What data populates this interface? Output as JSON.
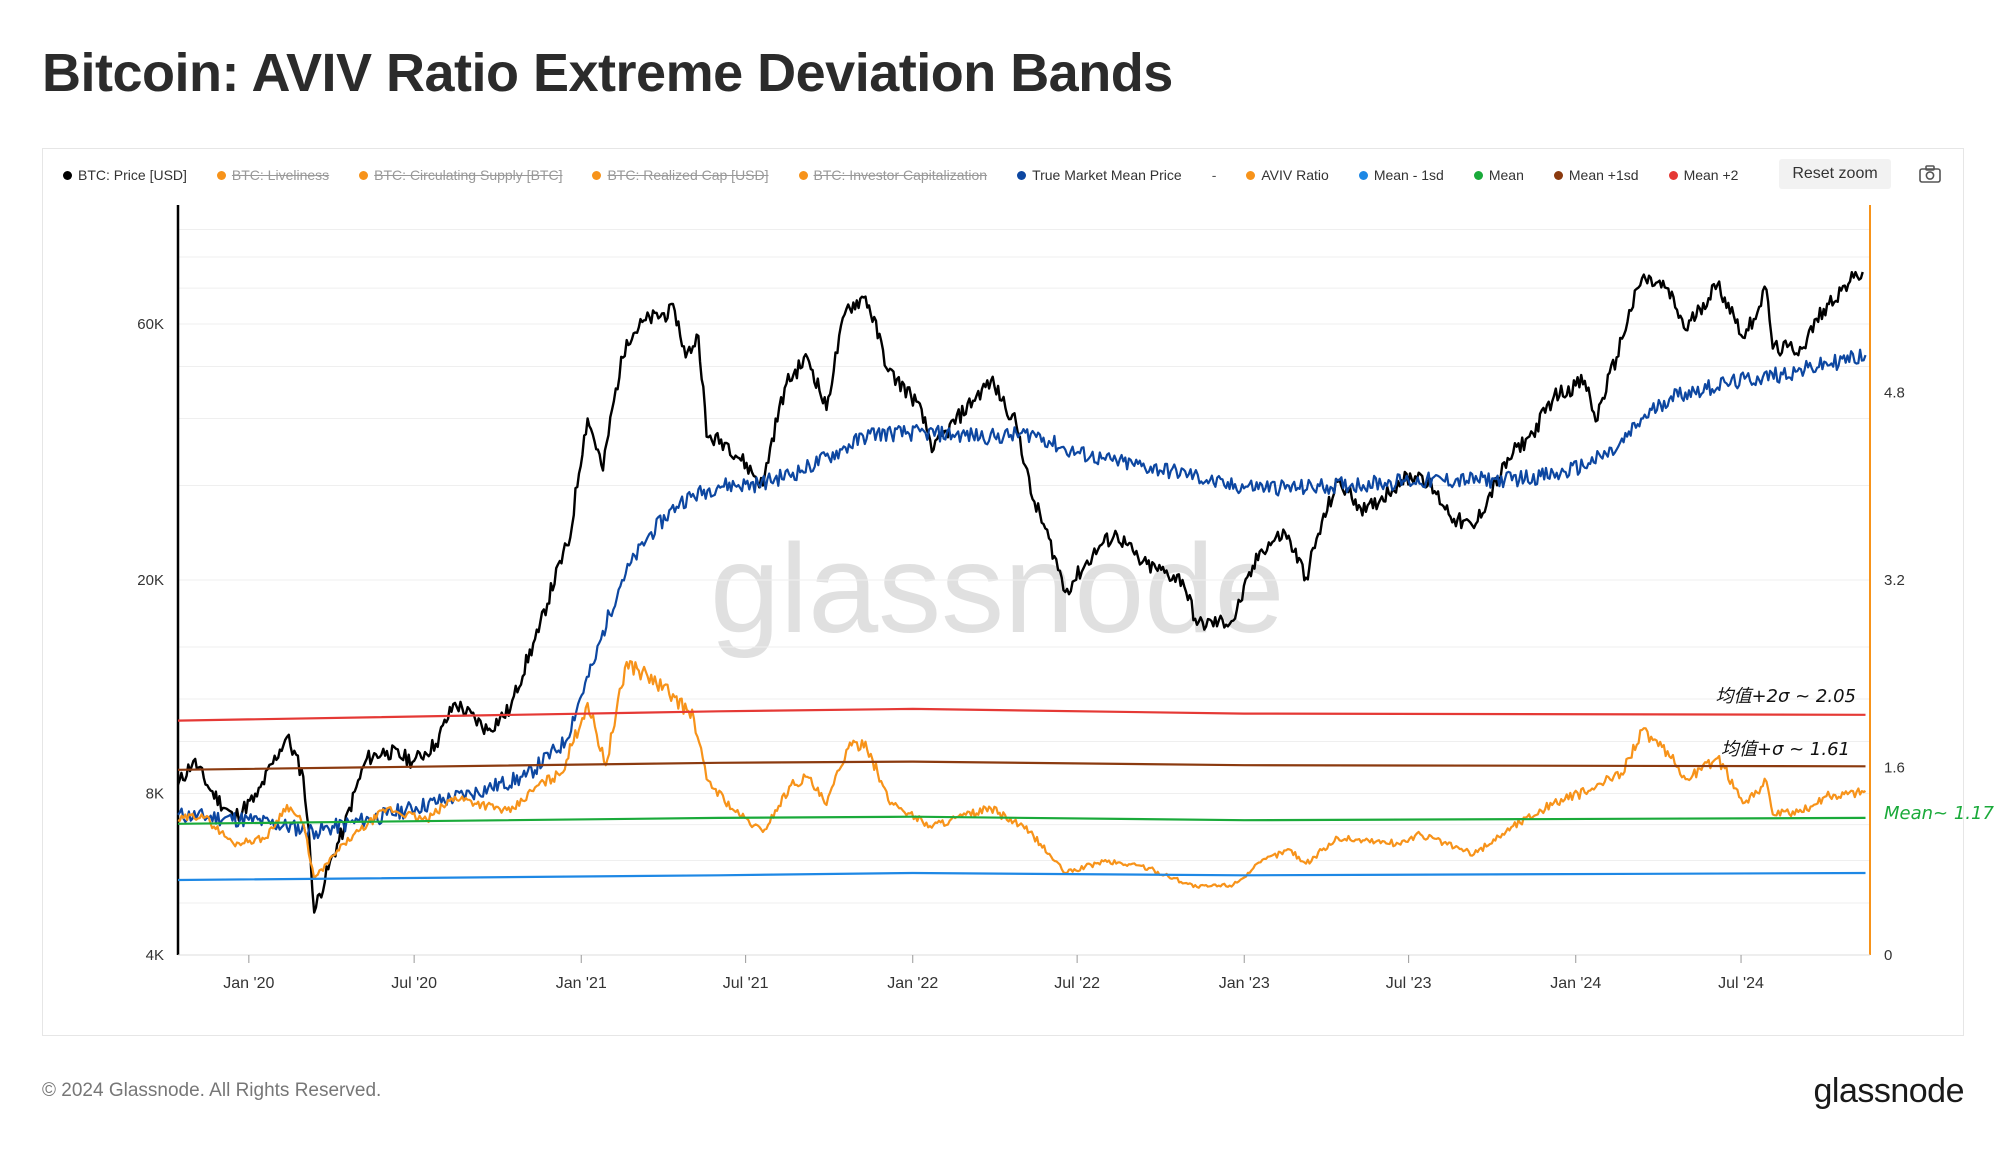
{
  "title": "Bitcoin: AVIV Ratio Extreme Deviation Bands",
  "toolbar": {
    "reset_zoom_label": "Reset zoom",
    "camera_icon": "camera-icon"
  },
  "legend": [
    {
      "label": "BTC: Price [USD]",
      "color": "#000000",
      "hidden": false
    },
    {
      "label": "BTC: Liveliness",
      "color": "#f7931a",
      "hidden": true
    },
    {
      "label": "BTC: Circulating Supply [BTC]",
      "color": "#f7931a",
      "hidden": true
    },
    {
      "label": "BTC: Realized Cap [USD]",
      "color": "#f7931a",
      "hidden": true
    },
    {
      "label": "BTC: Investor Capitalization",
      "color": "#f7931a",
      "hidden": true
    },
    {
      "label": "True Market Mean Price",
      "color": "#0d47a1",
      "hidden": false
    },
    {
      "label": "-",
      "color": "",
      "hidden": false,
      "separator": true
    },
    {
      "label": "AVIV Ratio",
      "color": "#f7931a",
      "hidden": false
    },
    {
      "label": "Mean - 1sd",
      "color": "#1e88e5",
      "hidden": false
    },
    {
      "label": "Mean",
      "color": "#1aaa3a",
      "hidden": false
    },
    {
      "label": "Mean +1sd",
      "color": "#8b3a0f",
      "hidden": false
    },
    {
      "label": "Mean +2",
      "color": "#e53935",
      "hidden": false
    }
  ],
  "annotations": {
    "plus2": "均值+2σ ~ 2.05",
    "plus1": "均值+σ ~ 1.61",
    "mean": "Mean~ 1.17"
  },
  "watermark": "glassnode",
  "footer": {
    "copyright": "© 2024 Glassnode. All Rights Reserved.",
    "logo": "glassnode"
  },
  "chart_data": {
    "type": "line",
    "title": "Bitcoin: AVIV Ratio Extreme Deviation Bands",
    "x_ticks": [
      "Jan '20",
      "Jul '20",
      "Jan '21",
      "Jul '21",
      "Jan '22",
      "Jul '22",
      "Jan '23",
      "Jul '23",
      "Jan '24",
      "Jul '24"
    ],
    "x_range": [
      "2019-10-15",
      "2024-11-20"
    ],
    "y_left": {
      "scale": "log",
      "ticks": [
        "4K",
        "8K",
        "20K",
        "60K"
      ],
      "range": [
        4000,
        100000
      ]
    },
    "y_right": {
      "scale": "linear",
      "ticks": [
        "0",
        "1.6",
        "3.2",
        "4.8"
      ],
      "range": [
        0,
        6.4
      ]
    },
    "grid": true,
    "legend_position": "top",
    "series": [
      {
        "name": "BTC: Price [USD]",
        "axis": "left",
        "color": "#000000",
        "points": [
          [
            "2019-10-15",
            8300
          ],
          [
            "2019-11-01",
            9200
          ],
          [
            "2019-11-20",
            8100
          ],
          [
            "2019-12-15",
            7200
          ],
          [
            "2020-01-10",
            7900
          ],
          [
            "2020-02-12",
            10200
          ],
          [
            "2020-03-01",
            8600
          ],
          [
            "2020-03-13",
            4800
          ],
          [
            "2020-04-15",
            6900
          ],
          [
            "2020-05-10",
            9300
          ],
          [
            "2020-06-01",
            9600
          ],
          [
            "2020-07-01",
            9200
          ],
          [
            "2020-07-25",
            9900
          ],
          [
            "2020-08-15",
            11800
          ],
          [
            "2020-09-20",
            10500
          ],
          [
            "2020-10-15",
            11500
          ],
          [
            "2020-11-15",
            16000
          ],
          [
            "2020-12-20",
            24000
          ],
          [
            "2021-01-08",
            40000
          ],
          [
            "2021-01-25",
            32000
          ],
          [
            "2021-02-20",
            56000
          ],
          [
            "2021-03-13",
            61000
          ],
          [
            "2021-04-14",
            63500
          ],
          [
            "2021-04-26",
            52000
          ],
          [
            "2021-05-10",
            57000
          ],
          [
            "2021-05-19",
            37000
          ],
          [
            "2021-06-10",
            36000
          ],
          [
            "2021-07-20",
            30000
          ],
          [
            "2021-08-15",
            46500
          ],
          [
            "2021-09-07",
            52000
          ],
          [
            "2021-09-28",
            41500
          ],
          [
            "2021-10-20",
            64000
          ],
          [
            "2021-11-10",
            67500
          ],
          [
            "2021-12-05",
            49000
          ],
          [
            "2022-01-05",
            43000
          ],
          [
            "2022-01-24",
            35000
          ],
          [
            "2022-03-28",
            47000
          ],
          [
            "2022-04-25",
            39000
          ],
          [
            "2022-05-11",
            29000
          ],
          [
            "2022-06-18",
            19000
          ],
          [
            "2022-07-30",
            23500
          ],
          [
            "2022-08-14",
            24300
          ],
          [
            "2022-09-10",
            21500
          ],
          [
            "2022-10-25",
            20000
          ],
          [
            "2022-11-10",
            16500
          ],
          [
            "2022-12-20",
            16800
          ],
          [
            "2023-01-20",
            22800
          ],
          [
            "2023-02-15",
            24500
          ],
          [
            "2023-03-10",
            20200
          ],
          [
            "2023-04-14",
            30500
          ],
          [
            "2023-05-15",
            26800
          ],
          [
            "2023-06-23",
            30700
          ],
          [
            "2023-07-14",
            31500
          ],
          [
            "2023-08-20",
            26000
          ],
          [
            "2023-09-11",
            25000
          ],
          [
            "2023-10-24",
            34500
          ],
          [
            "2023-11-15",
            37500
          ],
          [
            "2023-12-08",
            44000
          ],
          [
            "2024-01-11",
            47000
          ],
          [
            "2024-01-23",
            39500
          ],
          [
            "2024-02-15",
            52000
          ],
          [
            "2024-03-14",
            73000
          ],
          [
            "2024-04-10",
            70000
          ],
          [
            "2024-05-01",
            58500
          ],
          [
            "2024-06-05",
            71000
          ],
          [
            "2024-07-05",
            56500
          ],
          [
            "2024-07-29",
            69500
          ],
          [
            "2024-08-05",
            54000
          ],
          [
            "2024-09-06",
            54000
          ],
          [
            "2024-09-30",
            64000
          ],
          [
            "2024-10-29",
            72000
          ],
          [
            "2024-11-12",
            75000
          ]
        ]
      },
      {
        "name": "True Market Mean Price",
        "axis": "left",
        "color": "#0d47a1",
        "points": [
          [
            "2019-10-15",
            7300
          ],
          [
            "2020-01-01",
            7150
          ],
          [
            "2020-03-15",
            6800
          ],
          [
            "2020-06-01",
            7300
          ],
          [
            "2020-09-01",
            8000
          ],
          [
            "2020-11-01",
            8600
          ],
          [
            "2020-12-15",
            10000
          ],
          [
            "2021-01-15",
            14000
          ],
          [
            "2021-02-15",
            20000
          ],
          [
            "2021-03-15",
            24000
          ],
          [
            "2021-04-20",
            28000
          ],
          [
            "2021-06-01",
            30000
          ],
          [
            "2021-07-15",
            30200
          ],
          [
            "2021-09-01",
            32000
          ],
          [
            "2021-10-15",
            35000
          ],
          [
            "2021-11-15",
            37500
          ],
          [
            "2022-01-15",
            37600
          ],
          [
            "2022-04-01",
            37000
          ],
          [
            "2022-05-15",
            37500
          ],
          [
            "2022-06-18",
            35000
          ],
          [
            "2022-08-01",
            33500
          ],
          [
            "2022-11-01",
            31500
          ],
          [
            "2022-12-10",
            30000
          ],
          [
            "2023-03-01",
            29700
          ],
          [
            "2023-07-01",
            30600
          ],
          [
            "2023-10-15",
            30800
          ],
          [
            "2023-12-15",
            31500
          ],
          [
            "2024-01-15",
            33000
          ],
          [
            "2024-02-15",
            35000
          ],
          [
            "2024-03-15",
            40000
          ],
          [
            "2024-04-15",
            44000
          ],
          [
            "2024-06-15",
            46500
          ],
          [
            "2024-09-01",
            49000
          ],
          [
            "2024-11-15",
            52500
          ]
        ]
      },
      {
        "name": "AVIV Ratio",
        "axis": "right",
        "color": "#f7931a",
        "points": [
          [
            "2019-10-15",
            1.15
          ],
          [
            "2019-11-10",
            1.2
          ],
          [
            "2019-12-15",
            0.95
          ],
          [
            "2020-01-20",
            1.0
          ],
          [
            "2020-02-12",
            1.28
          ],
          [
            "2020-03-01",
            1.12
          ],
          [
            "2020-03-13",
            0.65
          ],
          [
            "2020-04-15",
            0.95
          ],
          [
            "2020-06-01",
            1.25
          ],
          [
            "2020-07-15",
            1.15
          ],
          [
            "2020-08-15",
            1.35
          ],
          [
            "2020-10-15",
            1.22
          ],
          [
            "2020-11-15",
            1.45
          ],
          [
            "2020-12-10",
            1.55
          ],
          [
            "2021-01-08",
            2.15
          ],
          [
            "2021-01-28",
            1.62
          ],
          [
            "2021-02-20",
            2.5
          ],
          [
            "2021-03-15",
            2.38
          ],
          [
            "2021-04-14",
            2.2
          ],
          [
            "2021-05-05",
            2.02
          ],
          [
            "2021-05-19",
            1.5
          ],
          [
            "2021-06-20",
            1.22
          ],
          [
            "2021-07-20",
            1.05
          ],
          [
            "2021-08-20",
            1.45
          ],
          [
            "2021-09-07",
            1.52
          ],
          [
            "2021-09-28",
            1.28
          ],
          [
            "2021-10-20",
            1.75
          ],
          [
            "2021-11-10",
            1.82
          ],
          [
            "2021-12-05",
            1.32
          ],
          [
            "2022-01-20",
            1.1
          ],
          [
            "2022-03-28",
            1.25
          ],
          [
            "2022-05-10",
            1.05
          ],
          [
            "2022-06-18",
            0.7
          ],
          [
            "2022-07-30",
            0.8
          ],
          [
            "2022-09-10",
            0.76
          ],
          [
            "2022-11-10",
            0.58
          ],
          [
            "2022-12-20",
            0.6
          ],
          [
            "2023-01-25",
            0.82
          ],
          [
            "2023-02-20",
            0.9
          ],
          [
            "2023-03-10",
            0.78
          ],
          [
            "2023-04-14",
            1.0
          ],
          [
            "2023-06-20",
            0.95
          ],
          [
            "2023-07-14",
            1.03
          ],
          [
            "2023-09-11",
            0.86
          ],
          [
            "2023-10-24",
            1.1
          ],
          [
            "2023-12-08",
            1.3
          ],
          [
            "2024-01-15",
            1.4
          ],
          [
            "2024-02-20",
            1.55
          ],
          [
            "2024-03-14",
            1.92
          ],
          [
            "2024-04-15",
            1.68
          ],
          [
            "2024-05-01",
            1.5
          ],
          [
            "2024-06-05",
            1.68
          ],
          [
            "2024-07-05",
            1.3
          ],
          [
            "2024-07-29",
            1.48
          ],
          [
            "2024-08-05",
            1.2
          ],
          [
            "2024-09-06",
            1.22
          ],
          [
            "2024-10-01",
            1.35
          ],
          [
            "2024-11-15",
            1.4
          ]
        ]
      },
      {
        "name": "Mean - 1sd",
        "axis": "right",
        "color": "#1e88e5",
        "points": [
          [
            "2019-10-15",
            0.64
          ],
          [
            "2021-06-01",
            0.68
          ],
          [
            "2022-01-01",
            0.7
          ],
          [
            "2023-01-01",
            0.68
          ],
          [
            "2024-11-15",
            0.7
          ]
        ]
      },
      {
        "name": "Mean",
        "axis": "right",
        "color": "#1aaa3a",
        "points": [
          [
            "2019-10-15",
            1.12
          ],
          [
            "2021-06-01",
            1.17
          ],
          [
            "2022-01-01",
            1.18
          ],
          [
            "2023-01-01",
            1.15
          ],
          [
            "2024-11-15",
            1.17
          ]
        ]
      },
      {
        "name": "Mean +1sd",
        "axis": "right",
        "color": "#8b3a0f",
        "points": [
          [
            "2019-10-15",
            1.58
          ],
          [
            "2021-06-01",
            1.64
          ],
          [
            "2022-01-01",
            1.65
          ],
          [
            "2023-01-01",
            1.62
          ],
          [
            "2024-11-15",
            1.61
          ]
        ]
      },
      {
        "name": "Mean +2",
        "axis": "right",
        "color": "#e53935",
        "points": [
          [
            "2019-10-15",
            2.0
          ],
          [
            "2021-06-01",
            2.08
          ],
          [
            "2022-01-01",
            2.1
          ],
          [
            "2023-01-01",
            2.06
          ],
          [
            "2024-11-15",
            2.05
          ]
        ]
      }
    ]
  }
}
